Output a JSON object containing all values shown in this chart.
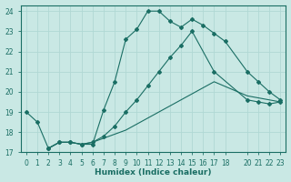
{
  "xlabel": "Humidex (Indice chaleur)",
  "bg_color": "#c9e8e4",
  "grid_color": "#b0d8d4",
  "line_color": "#1a6e64",
  "xlim": [
    -0.5,
    23.5
  ],
  "ylim": [
    17,
    24.3
  ],
  "yticks": [
    17,
    18,
    19,
    20,
    21,
    22,
    23,
    24
  ],
  "xticks": [
    0,
    1,
    2,
    3,
    4,
    5,
    6,
    7,
    8,
    9,
    10,
    11,
    12,
    13,
    14,
    15,
    16,
    17,
    18,
    20,
    21,
    22,
    23
  ],
  "xtick_labels": [
    "0",
    "1",
    "2",
    "3",
    "4",
    "5",
    "6",
    "7",
    "8",
    "9",
    "10",
    "11",
    "12",
    "13",
    "14",
    "15",
    "16",
    "17",
    "18",
    "20",
    "21",
    "22",
    "23"
  ],
  "line1_x": [
    0,
    1,
    2,
    3,
    4,
    5,
    6,
    7,
    8,
    9,
    10,
    11,
    12,
    13,
    14,
    15,
    16,
    17,
    18,
    20,
    21,
    22,
    23
  ],
  "line1_y": [
    19.0,
    18.5,
    17.2,
    17.5,
    17.5,
    17.4,
    17.4,
    19.1,
    20.5,
    22.6,
    23.1,
    24.0,
    24.0,
    23.5,
    23.2,
    23.6,
    23.3,
    22.9,
    22.5,
    21.0,
    20.5,
    20.0,
    19.6
  ],
  "line2_x": [
    2,
    3,
    4,
    5,
    6,
    7,
    8,
    9,
    10,
    11,
    12,
    13,
    14,
    15,
    17,
    20,
    21,
    22,
    23
  ],
  "line2_y": [
    17.2,
    17.5,
    17.5,
    17.4,
    17.5,
    17.8,
    18.3,
    19.0,
    19.6,
    20.3,
    21.0,
    21.7,
    22.3,
    23.0,
    21.0,
    19.6,
    19.5,
    19.4,
    19.5
  ],
  "line3_x": [
    2,
    3,
    4,
    5,
    6,
    7,
    8,
    9,
    10,
    11,
    12,
    13,
    14,
    15,
    17,
    20,
    21,
    22,
    23
  ],
  "line3_y": [
    17.2,
    17.5,
    17.5,
    17.4,
    17.5,
    17.7,
    17.9,
    18.1,
    18.4,
    18.7,
    19.0,
    19.3,
    19.6,
    19.9,
    20.5,
    19.8,
    19.7,
    19.6,
    19.5
  ]
}
